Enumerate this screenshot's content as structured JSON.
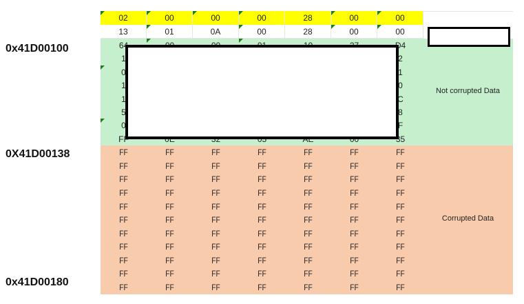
{
  "addresses": {
    "start": "0x41D00100",
    "corrupt_start": "0X41D00138",
    "end": "0x41D00180"
  },
  "header_rows": [
    {
      "cells": [
        "02",
        "00",
        "00",
        "00",
        "28",
        "00",
        "00"
      ],
      "markers": [
        true,
        true,
        true,
        true,
        false,
        true,
        true
      ]
    },
    {
      "cells": [
        "13",
        "01",
        "0A",
        "00",
        "28",
        "00",
        "00"
      ],
      "markers": [
        false,
        true,
        false,
        true,
        false,
        true,
        true
      ]
    }
  ],
  "green_rows": [
    {
      "cells": [
        "64",
        "00",
        "00",
        "01",
        "10",
        "27",
        "D4"
      ],
      "markers": [
        false,
        true,
        false,
        true,
        false,
        false,
        false
      ]
    },
    {
      "cells": [
        "1",
        "",
        "",
        "",
        "",
        "",
        "2"
      ],
      "markers": [
        false,
        false,
        false,
        false,
        false,
        false,
        false
      ]
    },
    {
      "cells": [
        "0",
        "",
        "",
        "",
        "",
        "",
        "1"
      ],
      "markers": [
        true,
        false,
        false,
        false,
        false,
        false,
        false
      ]
    },
    {
      "cells": [
        "1",
        "",
        "",
        "",
        "",
        "",
        "0"
      ],
      "markers": [
        false,
        false,
        false,
        false,
        false,
        false,
        false
      ]
    },
    {
      "cells": [
        "1",
        "",
        "",
        "",
        "",
        "",
        "C"
      ],
      "markers": [
        false,
        false,
        false,
        false,
        false,
        false,
        false
      ]
    },
    {
      "cells": [
        "5",
        "",
        "",
        "",
        "",
        "",
        "8"
      ],
      "markers": [
        false,
        false,
        false,
        false,
        false,
        false,
        false
      ]
    },
    {
      "cells": [
        "0",
        "",
        "",
        "",
        "",
        "",
        "F"
      ],
      "markers": [
        true,
        false,
        false,
        false,
        false,
        false,
        false
      ]
    },
    {
      "cells": [
        "FF",
        "0E",
        "32",
        "05",
        "AE",
        "00",
        "35"
      ],
      "markers": [
        false,
        false,
        false,
        false,
        false,
        false,
        false
      ]
    }
  ],
  "orange_rows": 11,
  "orange_value": "FF",
  "labels": {
    "not_corrupted": "Not corrupted Data",
    "corrupted": "Corrupted Data"
  },
  "colors": {
    "header": "#ffff00",
    "not_corrupted": "#c6efce",
    "corrupted": "#f8cbad",
    "marker": "#1a7f1a"
  }
}
